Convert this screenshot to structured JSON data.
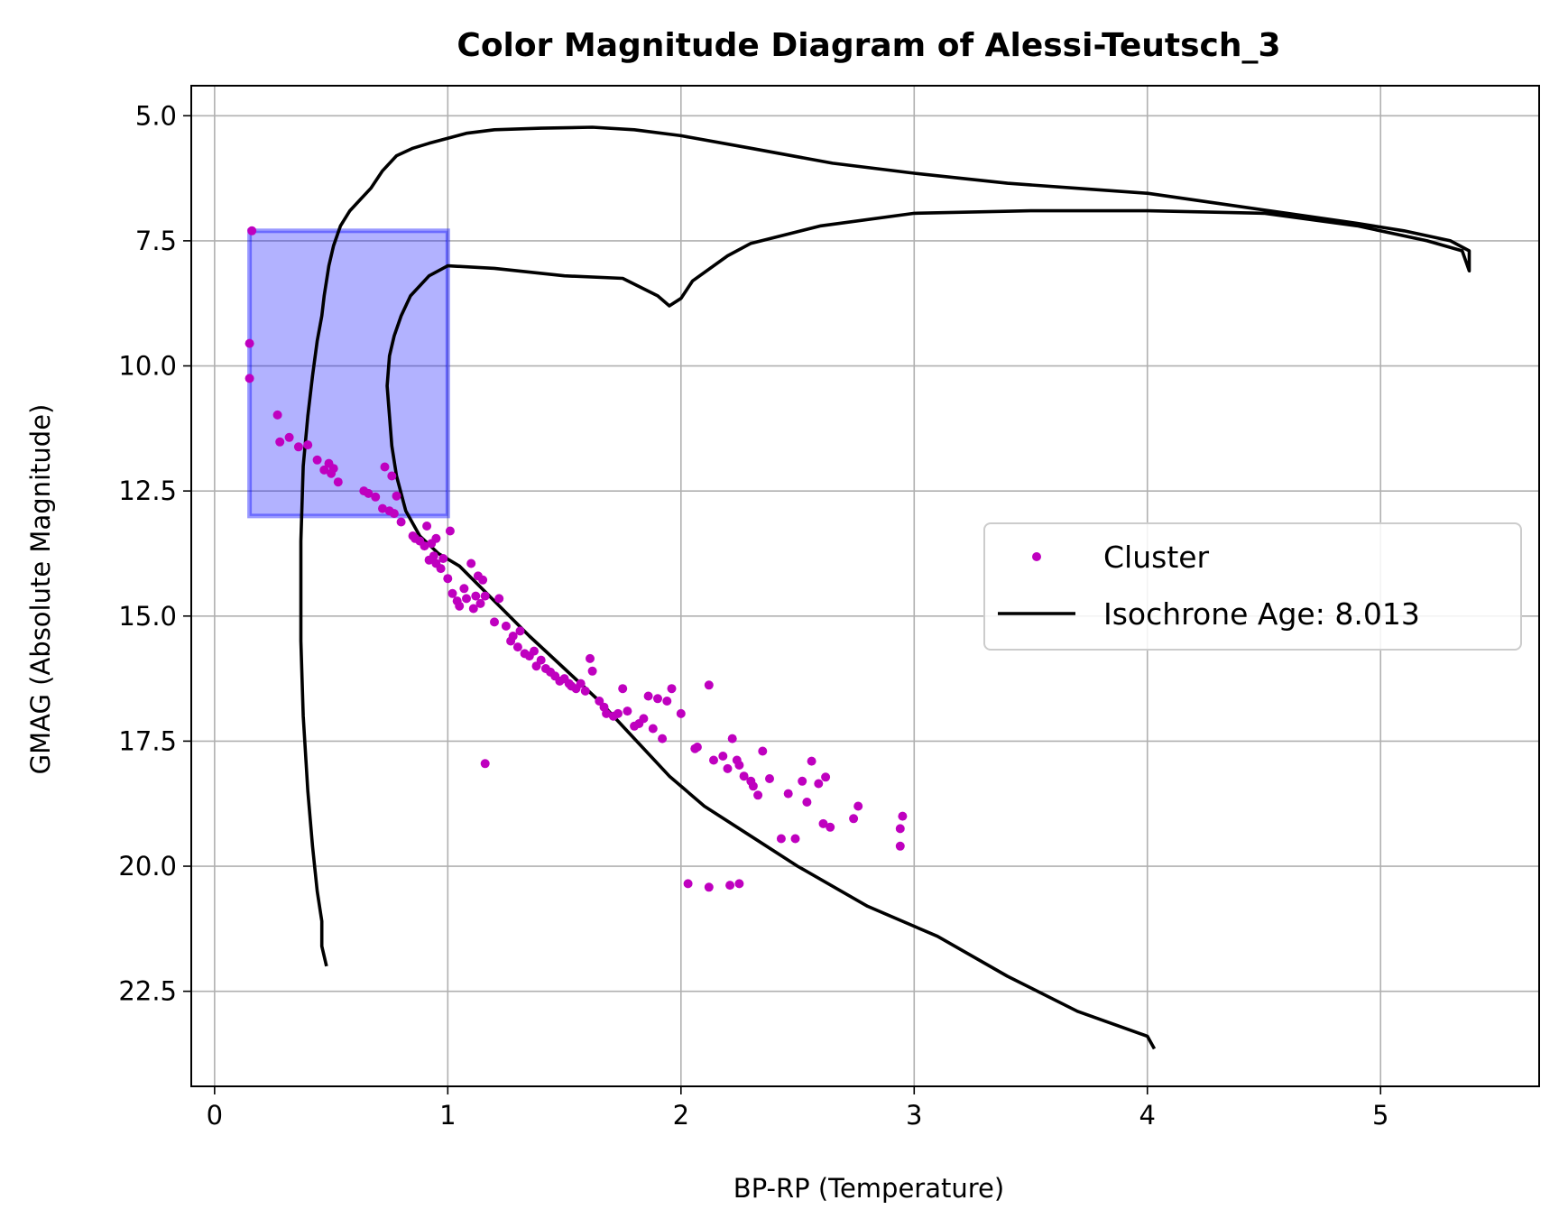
{
  "chart_data": {
    "type": "scatter",
    "title": "Color Magnitude Diagram of Alessi-Teutsch_3",
    "xlabel": "BP-RP (Temperature)",
    "ylabel": "GMAG (Absolute Magnitude)",
    "xlim": [
      -0.1,
      5.68
    ],
    "ylim": [
      24.4,
      4.4
    ],
    "y_inverted": true,
    "grid": true,
    "x_ticks": [
      {
        "value": 0,
        "label": "0"
      },
      {
        "value": 1,
        "label": "1"
      },
      {
        "value": 2,
        "label": "2"
      },
      {
        "value": 3,
        "label": "3"
      },
      {
        "value": 4,
        "label": "4"
      },
      {
        "value": 5,
        "label": "5"
      }
    ],
    "y_ticks": [
      {
        "value": 5.0,
        "label": "5.0"
      },
      {
        "value": 7.5,
        "label": "7.5"
      },
      {
        "value": 10.0,
        "label": "10.0"
      },
      {
        "value": 12.5,
        "label": "12.5"
      },
      {
        "value": 15.0,
        "label": "15.0"
      },
      {
        "value": 17.5,
        "label": "17.5"
      },
      {
        "value": 20.0,
        "label": "20.0"
      },
      {
        "value": 22.5,
        "label": "22.5"
      }
    ],
    "legend": {
      "placement": "center-right",
      "entries": [
        {
          "label": "Cluster",
          "marker": "dot",
          "color": "#bf00bf"
        },
        {
          "label": "Isochrone Age: 8.013",
          "marker": "line",
          "color": "#000000"
        }
      ]
    },
    "highlight_region": {
      "x": [
        0.15,
        1.0
      ],
      "y": [
        7.3,
        13.0
      ],
      "fill": "#0000ff",
      "fill_opacity": 0.3,
      "stroke": "#0000ff"
    },
    "series": [
      {
        "name": "Cluster",
        "kind": "scatter",
        "color": "#bf00bf",
        "x": [
          0.16,
          0.15,
          0.15,
          0.27,
          0.28,
          0.32,
          0.36,
          0.4,
          0.44,
          0.47,
          0.49,
          0.5,
          0.51,
          0.53,
          0.64,
          0.66,
          0.69,
          0.72,
          0.73,
          0.75,
          0.76,
          0.77,
          0.78,
          0.8,
          0.85,
          0.86,
          0.88,
          0.9,
          0.91,
          0.92,
          0.93,
          0.94,
          0.95,
          0.95,
          0.97,
          0.98,
          1.0,
          1.01,
          1.02,
          1.04,
          1.05,
          1.07,
          1.08,
          1.1,
          1.11,
          1.12,
          1.13,
          1.14,
          1.15,
          1.16,
          1.2,
          1.22,
          1.25,
          1.27,
          1.28,
          1.3,
          1.31,
          1.33,
          1.35,
          1.37,
          1.38,
          1.4,
          1.42,
          1.44,
          1.46,
          1.48,
          1.5,
          1.52,
          1.53,
          1.55,
          1.57,
          1.59,
          1.61,
          1.62,
          1.65,
          1.67,
          1.68,
          1.71,
          1.73,
          1.75,
          1.77,
          1.8,
          1.82,
          1.84,
          1.86,
          1.88,
          1.9,
          1.92,
          1.94,
          1.96,
          2.0,
          2.06,
          2.07,
          2.12,
          2.14,
          2.18,
          2.2,
          2.22,
          2.24,
          2.25,
          2.27,
          2.3,
          2.31,
          2.33,
          2.35,
          2.38,
          2.43,
          2.46,
          2.49,
          2.52,
          2.54,
          2.56,
          2.59,
          2.61,
          2.62,
          2.64,
          2.74,
          2.76,
          2.94,
          2.94,
          2.95,
          1.16,
          2.03,
          2.12,
          2.21,
          2.25
        ],
        "y": [
          7.3,
          9.55,
          10.25,
          10.98,
          11.52,
          11.43,
          11.62,
          11.58,
          11.88,
          12.08,
          11.95,
          12.15,
          12.05,
          12.32,
          12.5,
          12.55,
          12.62,
          12.85,
          12.02,
          12.9,
          12.2,
          12.95,
          12.6,
          13.12,
          13.4,
          13.45,
          13.5,
          13.6,
          13.2,
          13.88,
          13.55,
          13.8,
          13.95,
          13.45,
          14.05,
          13.85,
          14.25,
          13.3,
          14.55,
          14.7,
          14.8,
          14.45,
          14.65,
          13.95,
          14.85,
          14.6,
          14.2,
          14.75,
          14.28,
          14.6,
          15.12,
          14.65,
          15.2,
          15.5,
          15.4,
          15.62,
          15.3,
          15.75,
          15.8,
          15.7,
          16.0,
          15.88,
          16.05,
          16.12,
          16.2,
          16.3,
          16.25,
          16.35,
          16.4,
          16.45,
          16.35,
          16.5,
          15.85,
          16.1,
          16.7,
          16.82,
          16.95,
          17.0,
          16.95,
          16.45,
          16.9,
          17.2,
          17.15,
          17.05,
          16.6,
          17.25,
          16.65,
          17.45,
          16.7,
          16.45,
          16.95,
          17.65,
          17.62,
          16.38,
          17.88,
          17.8,
          18.05,
          17.45,
          17.88,
          17.98,
          18.2,
          18.3,
          18.4,
          18.58,
          17.7,
          18.25,
          19.45,
          18.55,
          19.45,
          18.3,
          18.72,
          17.9,
          18.35,
          19.15,
          18.22,
          19.22,
          19.05,
          18.8,
          19.6,
          19.25,
          19.0,
          17.95,
          20.35,
          20.42,
          20.38,
          20.35
        ]
      },
      {
        "name": "Isochrone Age: 8.013",
        "kind": "line",
        "color": "#000000",
        "x": [
          0.48,
          0.46,
          0.46,
          0.44,
          0.42,
          0.4,
          0.38,
          0.37,
          0.37,
          0.38,
          0.4,
          0.42,
          0.44,
          0.46,
          0.47,
          0.48,
          0.49,
          0.51,
          0.54,
          0.58,
          0.62,
          0.67,
          0.72,
          0.78,
          0.85,
          0.92,
          1.0,
          1.08,
          1.2,
          1.4,
          1.62,
          1.8,
          2.0,
          2.3,
          2.65,
          3.0,
          3.2,
          3.4,
          3.7,
          4.0,
          4.3,
          4.6,
          4.9,
          5.1,
          5.3,
          5.38,
          5.38,
          5.35,
          5.2,
          4.9,
          4.5,
          4.0,
          3.5,
          3.0,
          2.6,
          2.3,
          2.2,
          2.05,
          2.0,
          1.95,
          1.9,
          1.75,
          1.5,
          1.2,
          1.0,
          0.92,
          0.84,
          0.8,
          0.77,
          0.75,
          0.74,
          0.75,
          0.76,
          0.78,
          0.82,
          0.88,
          0.96,
          1.05,
          1.2,
          1.35,
          1.5,
          1.65,
          1.8,
          1.95,
          2.1,
          2.3,
          2.5,
          2.8,
          3.1,
          3.4,
          3.7,
          4.0,
          4.03
        ],
        "y": [
          22.0,
          21.6,
          21.1,
          20.5,
          19.6,
          18.5,
          17.0,
          15.5,
          13.5,
          12.0,
          11.0,
          10.2,
          9.5,
          9.0,
          8.6,
          8.3,
          8.0,
          7.6,
          7.2,
          6.9,
          6.7,
          6.45,
          6.1,
          5.8,
          5.65,
          5.55,
          5.45,
          5.35,
          5.28,
          5.25,
          5.23,
          5.28,
          5.4,
          5.65,
          5.95,
          6.15,
          6.25,
          6.35,
          6.45,
          6.55,
          6.75,
          6.95,
          7.15,
          7.3,
          7.5,
          7.7,
          8.1,
          7.7,
          7.5,
          7.2,
          6.95,
          6.9,
          6.9,
          6.95,
          7.2,
          7.55,
          7.8,
          8.3,
          8.65,
          8.8,
          8.6,
          8.25,
          8.2,
          8.05,
          8.0,
          8.2,
          8.6,
          9.0,
          9.4,
          9.8,
          10.4,
          11.0,
          11.6,
          12.2,
          12.9,
          13.4,
          13.75,
          14.0,
          14.7,
          15.4,
          16.05,
          16.7,
          17.45,
          18.2,
          18.8,
          19.4,
          20.0,
          20.8,
          21.4,
          22.2,
          22.9,
          23.4,
          23.65
        ]
      }
    ]
  }
}
